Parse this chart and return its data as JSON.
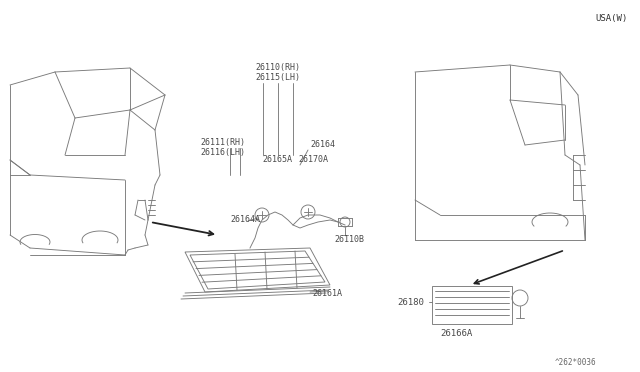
{
  "bg_color": "#ffffff",
  "line_color": "#7a7a7a",
  "text_color": "#4a4a4a",
  "usa_label": "USA(W)",
  "part_number_label": "^262*0036",
  "fontsize": 5.8,
  "lw": 0.65,
  "labels": {
    "26110_RH": "26110(RH)",
    "26115_LH": "26115(LH)",
    "26111_RH": "26111(RH)",
    "26116_LH": "26116(LH)",
    "26164": "26164",
    "26165A": "26165A",
    "26170A": "26170A",
    "26164A": "26164A",
    "26110B": "26110B",
    "26161A": "26161A",
    "26180": "26180",
    "26166A": "26166A"
  }
}
